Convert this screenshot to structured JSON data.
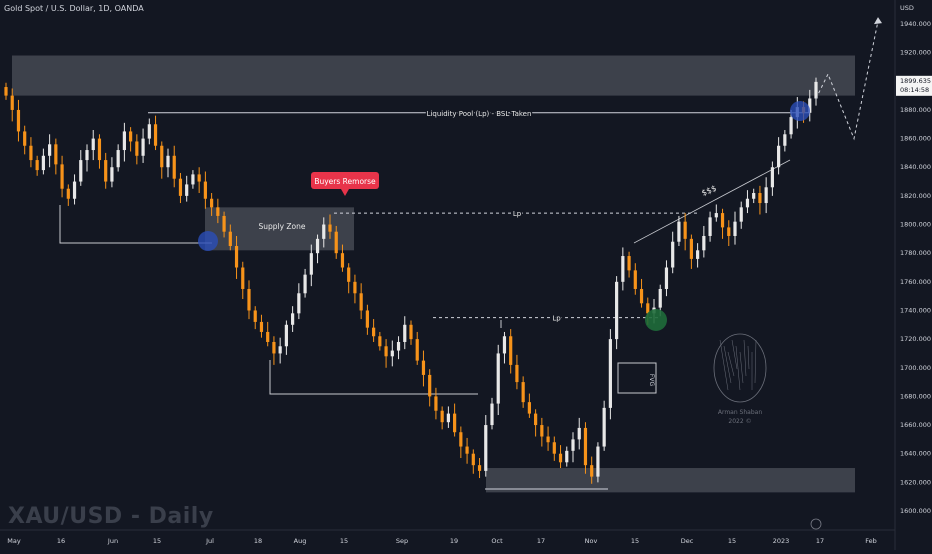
{
  "header": {
    "symbol_line": "Gold Spot / U.S. Dollar, 1D, OANDA"
  },
  "watermark_text": "XAU/USD - Daily",
  "author": {
    "name": "Arman Shaban",
    "year": "2022 ©",
    "logo_icon": "brain-logo-icon"
  },
  "price_axis": {
    "currency": "USD",
    "current_price": "1899.635",
    "countdown": "08:14:58",
    "current_price_color": "#f5f5f5"
  },
  "annotations": {
    "liquidity_pool": "Liquidity Pool (Lp) - BSL Taken",
    "buyers_remorse": "Buyers Remorse",
    "supply_zone": "Supply Zone",
    "lp_upper": "Lp",
    "lp_lower": "Lp",
    "fvg": "FVG",
    "dollars": "$$$"
  },
  "chart_data": {
    "type": "candlestick",
    "title": "Gold Spot / U.S. Dollar, 1D, OANDA",
    "y_ticks": [
      1600.0,
      1620.0,
      1640.0,
      1660.0,
      1680.0,
      1700.0,
      1720.0,
      1740.0,
      1760.0,
      1780.0,
      1800.0,
      1820.0,
      1840.0,
      1860.0,
      1880.0,
      1900.0,
      1920.0,
      1940.0
    ],
    "y_tick_labels": [
      "1600.000",
      "1620.000",
      "1640.000",
      "1660.000",
      "1680.000",
      "1700.000",
      "1720.000",
      "1740.000",
      "1760.000",
      "1780.000",
      "1800.000",
      "1820.000",
      "1840.000",
      "1860.000",
      "1880.000",
      "1900.000",
      "1920.000",
      "1940.000"
    ],
    "ylim": [
      1593,
      1950
    ],
    "x_ticks": [
      "May",
      "16",
      "Jun",
      "15",
      "Jul",
      "18",
      "Aug",
      "15",
      "Sep",
      "19",
      "Oct",
      "17",
      "Nov",
      "15",
      "Dec",
      "15",
      "2023",
      "17",
      "Feb"
    ],
    "ohlc_approx_closes": [
      1890,
      1880,
      1865,
      1855,
      1845,
      1838,
      1848,
      1856,
      1842,
      1825,
      1818,
      1830,
      1845,
      1852,
      1860,
      1845,
      1830,
      1840,
      1852,
      1865,
      1858,
      1848,
      1860,
      1870,
      1855,
      1840,
      1848,
      1832,
      1820,
      1828,
      1835,
      1830,
      1818,
      1812,
      1806,
      1795,
      1785,
      1770,
      1755,
      1740,
      1732,
      1725,
      1718,
      1710,
      1715,
      1730,
      1738,
      1752,
      1765,
      1780,
      1790,
      1800,
      1795,
      1780,
      1770,
      1760,
      1752,
      1740,
      1728,
      1722,
      1715,
      1708,
      1712,
      1718,
      1730,
      1720,
      1705,
      1695,
      1680,
      1670,
      1662,
      1668,
      1655,
      1645,
      1640,
      1632,
      1628,
      1660,
      1675,
      1710,
      1722,
      1702,
      1690,
      1676,
      1668,
      1660,
      1652,
      1648,
      1640,
      1634,
      1642,
      1650,
      1658,
      1632,
      1624,
      1645,
      1672,
      1720,
      1760,
      1778,
      1768,
      1755,
      1745,
      1738,
      1742,
      1755,
      1770,
      1788,
      1802,
      1790,
      1776,
      1782,
      1792,
      1805,
      1808,
      1798,
      1792,
      1802,
      1812,
      1818,
      1822,
      1815,
      1826,
      1840,
      1855,
      1863,
      1875,
      1882,
      1878,
      1888,
      1899.6
    ],
    "key_levels": [
      {
        "label": "Liquidity Pool (Lp) - BSL Taken",
        "y": 1878
      },
      {
        "label": "Lp",
        "y": 1808
      },
      {
        "label": "Lp",
        "y": 1735
      }
    ],
    "zones": [
      {
        "label": "",
        "y_range": [
          1890,
          1918
        ]
      },
      {
        "label": "Supply Zone",
        "y_range": [
          1782,
          1812
        ]
      },
      {
        "label": "",
        "y_range": [
          1613,
          1630
        ]
      }
    ],
    "projection": [
      1888,
      1905,
      1860,
      1942
    ],
    "grid": false,
    "legend": "none"
  }
}
